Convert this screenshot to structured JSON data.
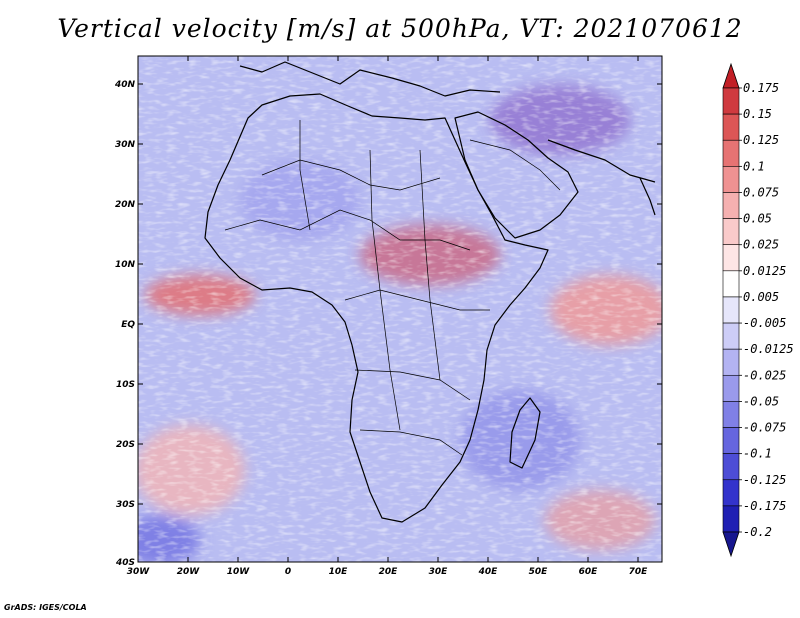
{
  "title": "Vertical velocity [m/s] at 500hPa, VT: 2021070612",
  "lat_labels": [
    "40N",
    "30N",
    "20N",
    "10N",
    "EQ",
    "10S",
    "20S",
    "30S",
    "40S"
  ],
  "lon_labels": [
    "30W",
    "20W",
    "10W",
    "0",
    "10E",
    "20E",
    "30E",
    "40E",
    "50E",
    "60E",
    "70E"
  ],
  "colorbar": {
    "levels": [
      "0.175",
      "0.15",
      "0.125",
      "0.1",
      "0.075",
      "0.05",
      "0.025",
      "0.0125",
      "0.005",
      "-0.005",
      "-0.0125",
      "-0.025",
      "-0.05",
      "-0.075",
      "-0.1",
      "-0.125",
      "-0.175",
      "-0.2"
    ],
    "colors": [
      "#c21f26",
      "#cf3a3f",
      "#dc5656",
      "#e67373",
      "#ef9292",
      "#f5b0b0",
      "#f9caca",
      "#fde5e5",
      "#ffffff",
      "#e6e6fb",
      "#cdcdf7",
      "#b3b3f2",
      "#9a9aec",
      "#8080e6",
      "#6666df",
      "#4d4dd6",
      "#3333cc",
      "#1f1fb3",
      "#17178f"
    ]
  },
  "credit": "GrADS: IGES/COLA"
}
